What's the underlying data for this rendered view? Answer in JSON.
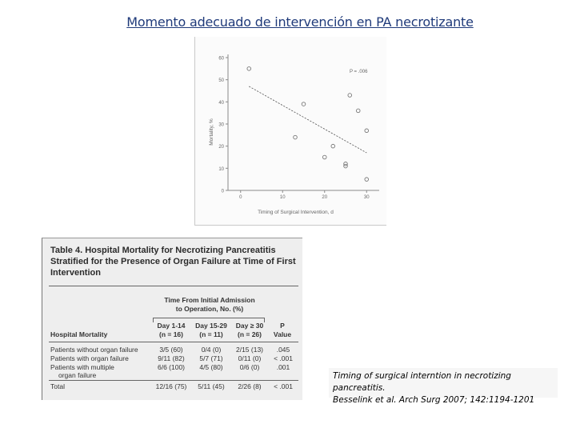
{
  "slide": {
    "title": "Momento adecuado de intervención en PA necrotizante"
  },
  "figure": {
    "chart_data": {
      "type": "scatter",
      "xlabel": "Timing of Surgical Intervention, d",
      "ylabel": "Mortality, %",
      "xlim": [
        -3,
        33
      ],
      "ylim": [
        0,
        60
      ],
      "xticks": [
        0,
        10,
        20,
        30
      ],
      "yticks": [
        0,
        10,
        20,
        30,
        40,
        50,
        60
      ],
      "annotation": "P = .006",
      "points": [
        {
          "x": 2,
          "y": 55
        },
        {
          "x": 13,
          "y": 24
        },
        {
          "x": 15,
          "y": 39
        },
        {
          "x": 20,
          "y": 15
        },
        {
          "x": 22,
          "y": 20
        },
        {
          "x": 25,
          "y": 11
        },
        {
          "x": 25,
          "y": 12
        },
        {
          "x": 26,
          "y": 43
        },
        {
          "x": 28,
          "y": 36
        },
        {
          "x": 30,
          "y": 27
        },
        {
          "x": 30,
          "y": 5
        }
      ],
      "trendline": {
        "x": [
          2,
          30
        ],
        "y": [
          47,
          17
        ]
      },
      "colors": {
        "marker": "#777777",
        "axis": "#8a8a8a",
        "trendline": "#555555"
      }
    }
  },
  "table": {
    "caption": "Table 4. Hospital Mortality for Necrotizing Pancreatitis Stratified for the Presence of Organ Failure at Time of First Intervention",
    "group_header_line1": "Time From Initial Admission",
    "group_header_line2": "to Operation, No. (%)",
    "row_header": "Hospital Mortality",
    "columns": [
      {
        "line1": "Day 1-14",
        "line2": "(n = 16)"
      },
      {
        "line1": "Day 15-29",
        "line2": "(n = 11)"
      },
      {
        "line1": "Day ≥ 30",
        "line2": "(n = 26)"
      },
      {
        "line1": "P",
        "line2": "Value"
      }
    ],
    "rows": [
      {
        "label": "Patients without organ failure",
        "label2": "",
        "cells": [
          "3/5 (60)",
          "0/4 (0)",
          "2/15 (13)",
          ".045"
        ]
      },
      {
        "label": "Patients with organ failure",
        "label2": "",
        "cells": [
          "9/11 (82)",
          "5/7 (71)",
          "0/11 (0)",
          "< .001"
        ]
      },
      {
        "label": "Patients with multiple",
        "label2": "organ failure",
        "cells": [
          "6/6 (100)",
          "4/5 (80)",
          "0/6 (0)",
          ".001"
        ]
      },
      {
        "label": "Total",
        "label2": "",
        "cells": [
          "12/16 (75)",
          "5/11 (45)",
          "2/26 (8)",
          "< .001"
        ]
      }
    ]
  },
  "citation": {
    "line1": "Timing of surgical interntion in necrotizing pancreatitis.",
    "line2": "Besselink et al. Arch Surg 2007; 142:1194-1201"
  }
}
